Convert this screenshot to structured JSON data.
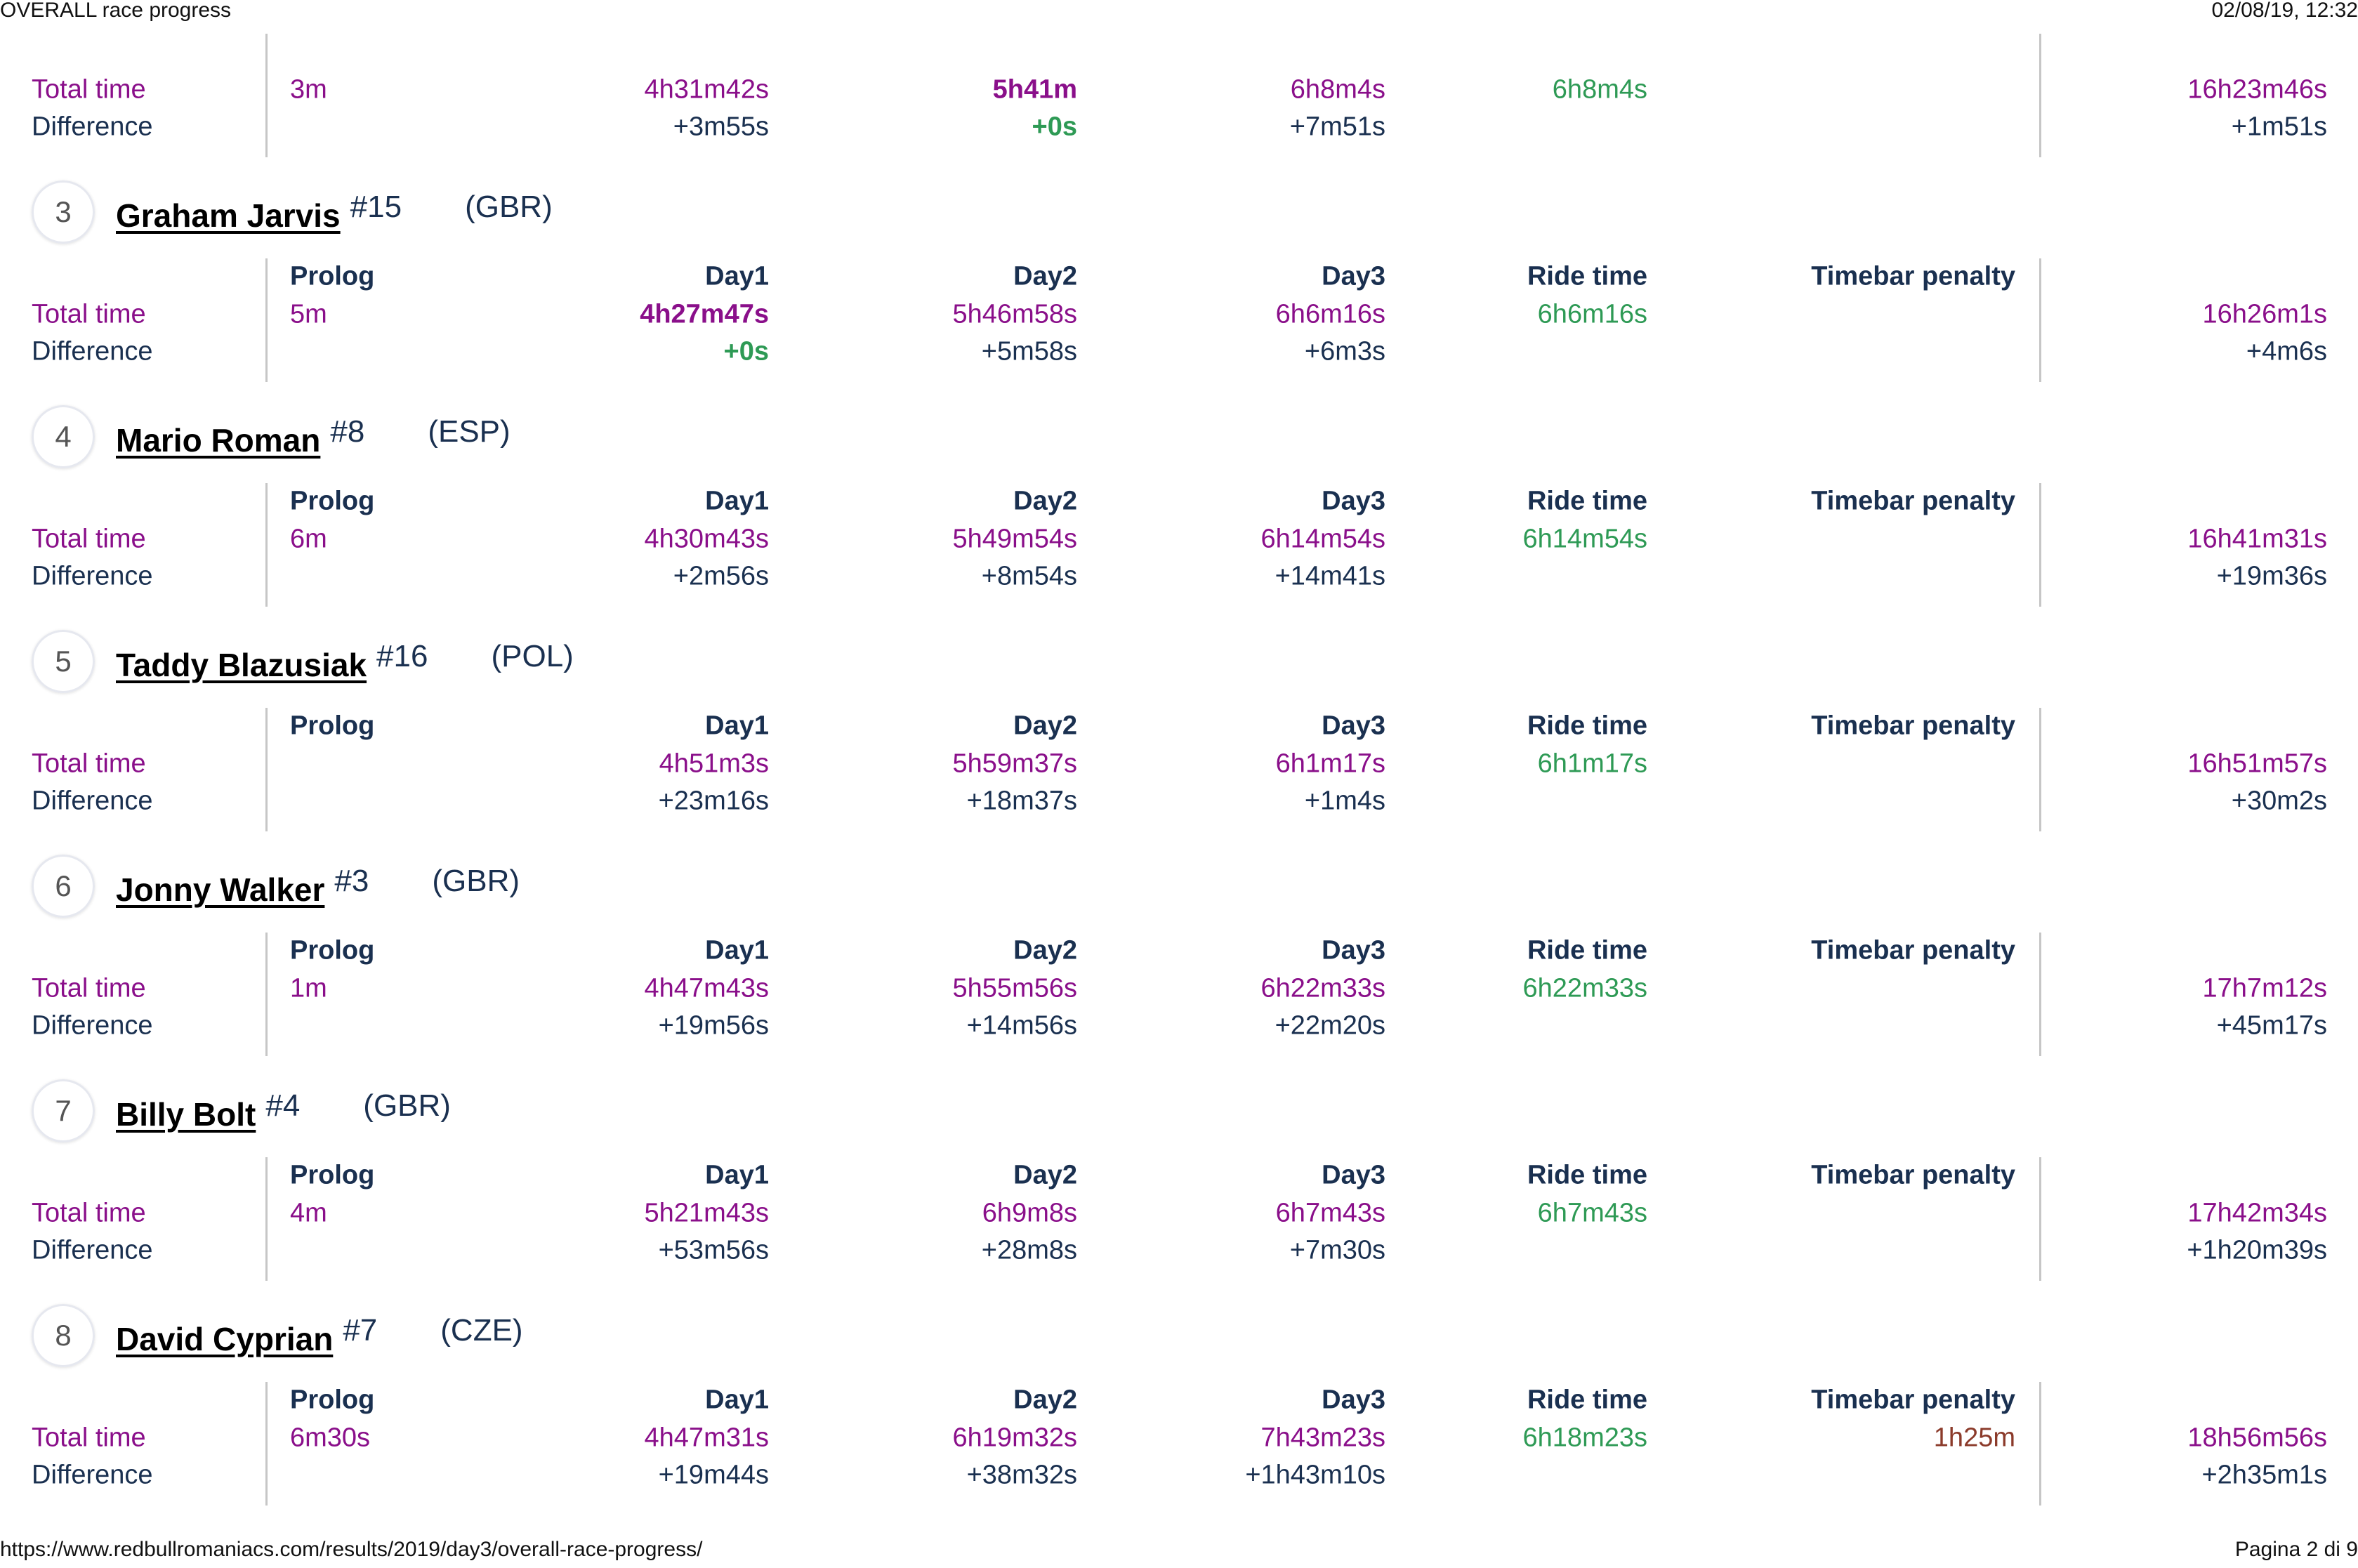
{
  "page": {
    "title": "OVERALL race progress",
    "datetime": "02/08/19, 12:32",
    "url": "https://www.redbullromaniacs.com/results/2019/day3/overall-race-progress/",
    "page_indicator": "Pagina 2 di 9"
  },
  "labels": {
    "total_time": "Total time",
    "difference": "Difference",
    "prolog": "Prolog",
    "day1": "Day1",
    "day2": "Day2",
    "day3": "Day3",
    "ride_time": "Ride time",
    "timebar_penalty": "Timebar penalty"
  },
  "colors": {
    "total": "#8a0f8a",
    "difference": "#1a3050",
    "ride": "#2e9a55",
    "penalty": "#8b3a2a",
    "best": "#2e9a55"
  },
  "riders": [
    {
      "partial": true,
      "prolog": "3m",
      "day1": "4h31m42s",
      "day1_diff": "+3m55s",
      "day2": "5h41m",
      "day2_diff": "+0s",
      "day3": "6h8m4s",
      "day3_diff": "+7m51s",
      "ride_time": "6h8m4s",
      "penalty": "",
      "total": "16h23m46s",
      "total_diff": "+1m51s",
      "best_day": "day2"
    },
    {
      "position": "3",
      "name": "Graham Jarvis",
      "number": "#15",
      "country": "(GBR)",
      "prolog": "5m",
      "day1": "4h27m47s",
      "day1_diff": "+0s",
      "day2": "5h46m58s",
      "day2_diff": "+5m58s",
      "day3": "6h6m16s",
      "day3_diff": "+6m3s",
      "ride_time": "6h6m16s",
      "penalty": "",
      "total": "16h26m1s",
      "total_diff": "+4m6s",
      "best_day": "day1"
    },
    {
      "position": "4",
      "name": "Mario Roman",
      "number": "#8",
      "country": "(ESP)",
      "prolog": "6m",
      "day1": "4h30m43s",
      "day1_diff": "+2m56s",
      "day2": "5h49m54s",
      "day2_diff": "+8m54s",
      "day3": "6h14m54s",
      "day3_diff": "+14m41s",
      "ride_time": "6h14m54s",
      "penalty": "",
      "total": "16h41m31s",
      "total_diff": "+19m36s"
    },
    {
      "position": "5",
      "name": "Taddy Blazusiak",
      "number": "#16",
      "country": "(POL)",
      "prolog": "",
      "day1": "4h51m3s",
      "day1_diff": "+23m16s",
      "day2": "5h59m37s",
      "day2_diff": "+18m37s",
      "day3": "6h1m17s",
      "day3_diff": "+1m4s",
      "ride_time": "6h1m17s",
      "penalty": "",
      "total": "16h51m57s",
      "total_diff": "+30m2s"
    },
    {
      "position": "6",
      "name": "Jonny Walker",
      "number": "#3",
      "country": "(GBR)",
      "prolog": "1m",
      "day1": "4h47m43s",
      "day1_diff": "+19m56s",
      "day2": "5h55m56s",
      "day2_diff": "+14m56s",
      "day3": "6h22m33s",
      "day3_diff": "+22m20s",
      "ride_time": "6h22m33s",
      "penalty": "",
      "total": "17h7m12s",
      "total_diff": "+45m17s"
    },
    {
      "position": "7",
      "name": "Billy Bolt",
      "number": "#4",
      "country": "(GBR)",
      "prolog": "4m",
      "day1": "5h21m43s",
      "day1_diff": "+53m56s",
      "day2": "6h9m8s",
      "day2_diff": "+28m8s",
      "day3": "6h7m43s",
      "day3_diff": "+7m30s",
      "ride_time": "6h7m43s",
      "penalty": "",
      "total": "17h42m34s",
      "total_diff": "+1h20m39s"
    },
    {
      "position": "8",
      "name": "David Cyprian",
      "number": "#7",
      "country": "(CZE)",
      "prolog": "6m30s",
      "day1": "4h47m31s",
      "day1_diff": "+19m44s",
      "day2": "6h19m32s",
      "day2_diff": "+38m32s",
      "day3": "7h43m23s",
      "day3_diff": "+1h43m10s",
      "ride_time": "6h18m23s",
      "penalty": "1h25m",
      "total": "18h56m56s",
      "total_diff": "+2h35m1s"
    }
  ]
}
